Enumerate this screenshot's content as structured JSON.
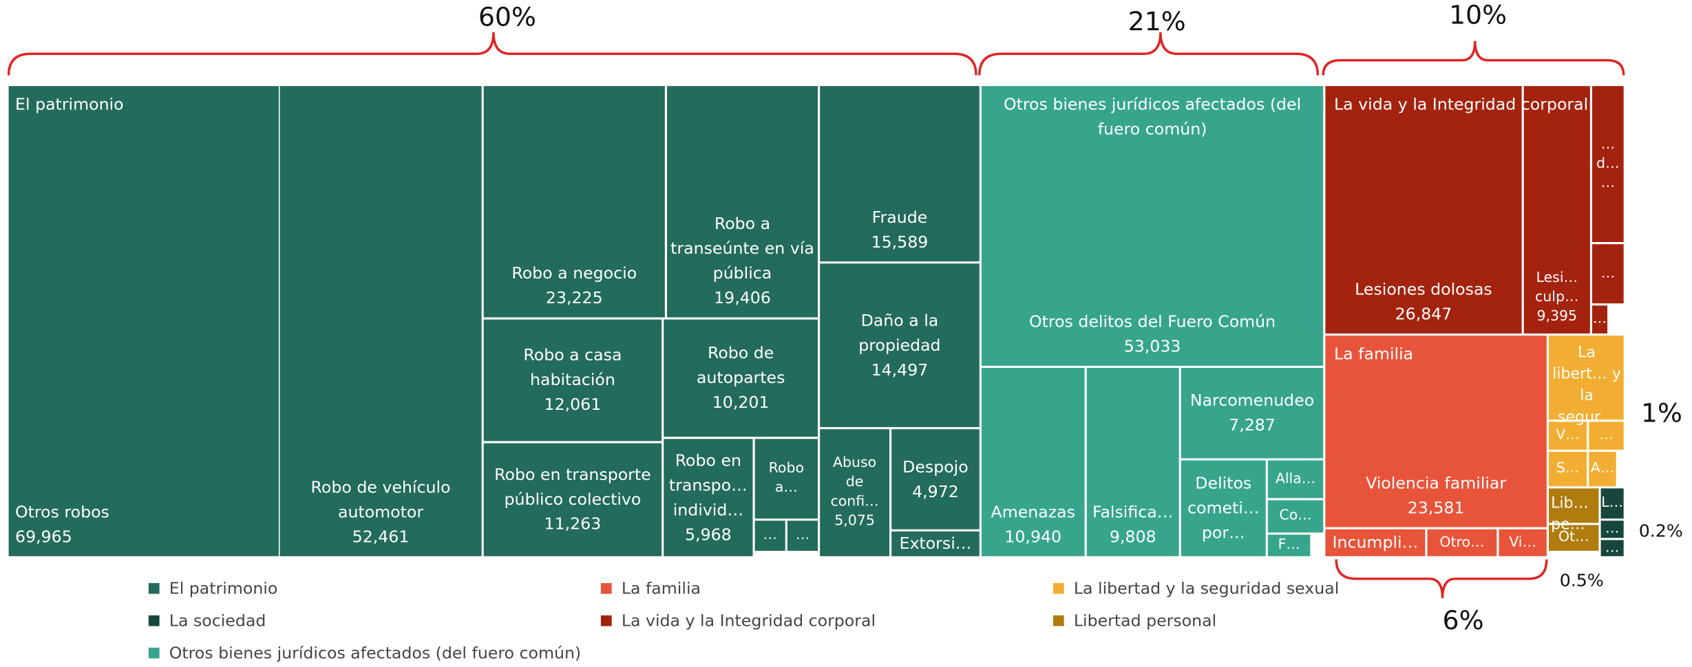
{
  "chart_data": {
    "type": "treemap",
    "groups": [
      {
        "name": "El patrimonio",
        "color": "#236b5b",
        "leaves": [
          {
            "name": "Otros robos",
            "value": 69965,
            "value_label": "69,965"
          },
          {
            "name": "Robo de vehículo automotor",
            "value": 52461,
            "value_label": "52,461"
          },
          {
            "name": "Robo a negocio",
            "value": 23225,
            "value_label": "23,225"
          },
          {
            "name": "Robo a transeúnte en vía pública",
            "value": 19406,
            "value_label": "19,406"
          },
          {
            "name": "Robo a casa habitación",
            "value": 12061,
            "value_label": "12,061"
          },
          {
            "name": "Robo de autopartes",
            "value": 10201,
            "value_label": "10,201"
          },
          {
            "name": "Robo en transporte público colectivo",
            "value": 11263,
            "value_label": "11,263"
          },
          {
            "name": "Robo en transpo… individ…",
            "value": 5968,
            "value_label": "5,968"
          },
          {
            "name": "Robo a…",
            "value": 3600
          },
          {
            "name": "…",
            "value": 1500
          },
          {
            "name": "…",
            "value": 1400
          },
          {
            "name": "Fraude",
            "value": 15589,
            "value_label": "15,589"
          },
          {
            "name": "Daño a la propiedad",
            "value": 14497,
            "value_label": "14,497"
          },
          {
            "name": "Abuso de confi…",
            "value": 5075,
            "value_label": "5,075"
          },
          {
            "name": "Despojo",
            "value": 4972,
            "value_label": "4,972"
          },
          {
            "name": "Extorsi…",
            "value": 1300
          }
        ]
      },
      {
        "name": "La familia",
        "color": "#e8543a",
        "leaves": [
          {
            "name": "Violencia familiar",
            "value": 23581,
            "value_label": "23,581"
          },
          {
            "name": "Incumpli…",
            "value": 2400
          },
          {
            "name": "Otro…",
            "value": 1700
          },
          {
            "name": "Vi…",
            "value": 1100
          }
        ]
      },
      {
        "name": "La libertad y la seguridad sexual",
        "header": "La libert… y la segur…",
        "color": "#f2ae32",
        "leaves": [
          {
            "value": 1900
          },
          {
            "name": "V…",
            "value": 600
          },
          {
            "name": "…",
            "value": 500
          },
          {
            "name": "S…",
            "value": 600
          },
          {
            "name": "A…",
            "value": 400
          }
        ]
      },
      {
        "name": "La sociedad",
        "color": "#17473a",
        "leaves": [
          {
            "name": "L…",
            "value": 300
          },
          {
            "name": "…",
            "value": 150
          },
          {
            "name": "…",
            "value": 120
          }
        ]
      },
      {
        "name": "La vida y la Integridad corporal",
        "color": "#a3230f",
        "leaves": [
          {
            "name": "Lesiones dolosas",
            "value": 26847,
            "value_label": "26,847"
          },
          {
            "name": "Lesi… culp…",
            "value": 9395,
            "value_label": "9,395"
          },
          {
            "name": "… d… …",
            "value": 2400
          },
          {
            "name": "…",
            "value": 1000
          },
          {
            "name": "…",
            "value": 300
          }
        ]
      },
      {
        "name": "Libertad personal",
        "header": "Lib… pe…",
        "color": "#b07c0e",
        "leaves": [
          {
            "value": 600
          },
          {
            "name": "Ot…",
            "value": 300
          }
        ]
      },
      {
        "name": "Otros bienes jurídicos afectados (del fuero común)",
        "color": "#37a58c",
        "leaves": [
          {
            "name": "Otros delitos del Fuero Común",
            "value": 53033,
            "value_label": "53,033"
          },
          {
            "name": "Amenazas",
            "value": 10940,
            "value_label": "10,940"
          },
          {
            "name": "Falsifica…",
            "value": 9808,
            "value_label": "9,808"
          },
          {
            "name": "Narcomenudeo",
            "value": 7287,
            "value_label": "7,287"
          },
          {
            "name": "Delitos cometi… por…",
            "value": 5000
          },
          {
            "name": "Alla…",
            "value": 1700
          },
          {
            "name": "Co…",
            "value": 1500
          },
          {
            "name": "F…",
            "value": 900
          }
        ]
      }
    ],
    "annotations": [
      "60%",
      "21%",
      "10%",
      "6%",
      "1%",
      "0.5%",
      "0.2%"
    ]
  }
}
